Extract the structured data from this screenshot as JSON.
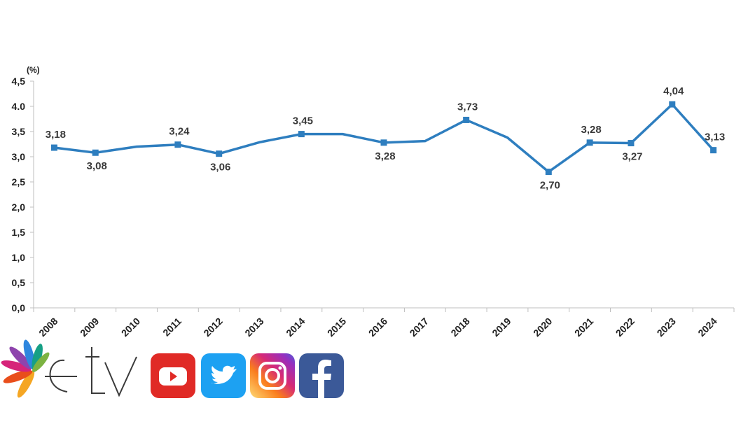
{
  "chart_data": {
    "type": "line",
    "unit_label": "(%)",
    "categories": [
      "2008",
      "2009",
      "2010",
      "2011",
      "2012",
      "2013",
      "2014",
      "2015",
      "2016",
      "2017",
      "2018",
      "2019",
      "2020",
      "2021",
      "2022",
      "2023",
      "2024"
    ],
    "series": [
      {
        "values": [
          3.18,
          3.08,
          3.2,
          3.24,
          3.06,
          3.29,
          3.45,
          3.45,
          3.28,
          3.31,
          3.73,
          3.38,
          2.7,
          3.28,
          3.27,
          4.04,
          3.13
        ]
      }
    ],
    "data_labels": [
      {
        "index": 0,
        "text": "3,18",
        "pos": "above"
      },
      {
        "index": 1,
        "text": "3,08",
        "pos": "below"
      },
      {
        "index": 3,
        "text": "3,24",
        "pos": "above"
      },
      {
        "index": 4,
        "text": "3,06",
        "pos": "below"
      },
      {
        "index": 6,
        "text": "3,45",
        "pos": "above"
      },
      {
        "index": 8,
        "text": "3,28",
        "pos": "below"
      },
      {
        "index": 10,
        "text": "3,73",
        "pos": "above"
      },
      {
        "index": 12,
        "text": "2,70",
        "pos": "below"
      },
      {
        "index": 13,
        "text": "3,28",
        "pos": "above"
      },
      {
        "index": 14,
        "text": "3,27",
        "pos": "below"
      },
      {
        "index": 15,
        "text": "4,04",
        "pos": "above"
      },
      {
        "index": 16,
        "text": "3,13",
        "pos": "above"
      }
    ],
    "marker_indices": [
      0,
      1,
      3,
      4,
      6,
      8,
      10,
      12,
      13,
      14,
      15,
      16
    ],
    "y_ticks": [
      0,
      0.5,
      1.0,
      1.5,
      2.0,
      2.5,
      3.0,
      3.5,
      4.0,
      4.5
    ],
    "y_tick_labels": [
      "0,0",
      "0,5",
      "1,0",
      "1,5",
      "2,0",
      "2,5",
      "3,0",
      "3,5",
      "4.0",
      "4,5"
    ],
    "ylim": [
      0,
      4.5
    ],
    "grid": false,
    "colors": {
      "line": "#2e7ebf",
      "marker": "#2e7ebf",
      "axis": "#bfbfbf"
    }
  },
  "social_bar": {
    "logo_text": "etv",
    "icons": [
      {
        "name": "youtube-icon",
        "color": "#e02a26"
      },
      {
        "name": "twitter-icon",
        "color": "#1da1f2"
      },
      {
        "name": "instagram-icon",
        "color": "#c13584"
      },
      {
        "name": "facebook-icon",
        "color": "#3b5998"
      }
    ]
  }
}
